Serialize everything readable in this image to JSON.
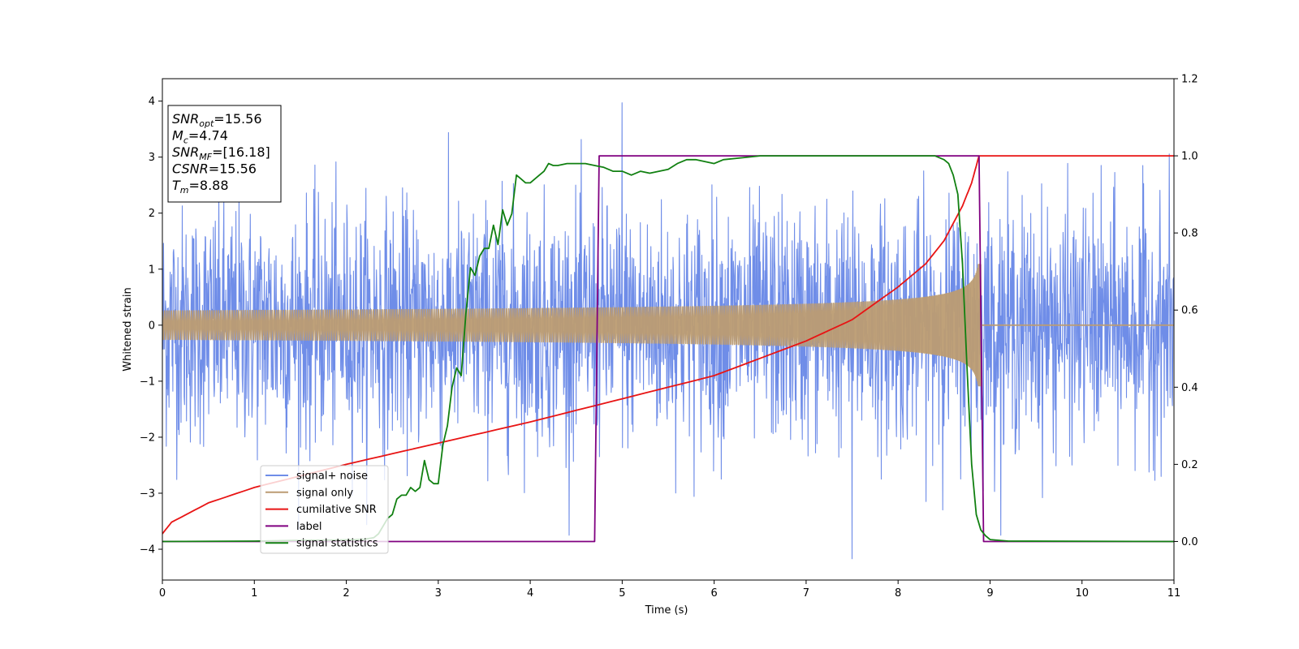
{
  "chart_data": {
    "type": "line",
    "title": "",
    "xlabel": "Time (s)",
    "ylabel": "Whitened strain",
    "xlim": [
      0,
      11
    ],
    "ylim": [
      -4.55,
      4.4
    ],
    "y2lim": [
      -0.1,
      1.2
    ],
    "x_ticks": [
      0,
      1,
      2,
      3,
      4,
      5,
      6,
      7,
      8,
      9,
      10,
      11
    ],
    "y_ticks": [
      -4,
      -3,
      -2,
      -1,
      0,
      1,
      2,
      3,
      4
    ],
    "y2_ticks": [
      0.0,
      0.2,
      0.4,
      0.6,
      0.8,
      1.0,
      1.2
    ],
    "y2_tick_labels": [
      "0.0",
      "0.2",
      "0.4",
      "0.6",
      "0.8",
      "1.0",
      "1.2"
    ],
    "grid": false,
    "legend_position": "lower-left",
    "series": [
      {
        "name": "signal+ noise",
        "axis": "left",
        "color": "#6f8de8",
        "kind": "noise",
        "sigma": 1.0,
        "peak_max": 3.97,
        "peak_min": -4.17,
        "samples": 2600
      },
      {
        "name": "signal only",
        "axis": "left",
        "color": "#bc9c72",
        "kind": "chirp",
        "amplitude_start": 0.08,
        "amplitude_at_8": 0.45,
        "amplitude_peak": 1.08,
        "merger_time": 8.88,
        "end_time": 8.9
      },
      {
        "name": "cumilative SNR",
        "axis": "right",
        "color": "#e81414",
        "x": [
          0,
          0.1,
          0.5,
          1,
          2,
          3,
          4,
          5,
          6,
          7,
          7.5,
          8,
          8.3,
          8.5,
          8.7,
          8.8,
          8.88,
          11
        ],
        "y": [
          0.02,
          0.05,
          0.1,
          0.14,
          0.2,
          0.255,
          0.31,
          0.37,
          0.43,
          0.52,
          0.575,
          0.66,
          0.72,
          0.78,
          0.87,
          0.93,
          1.0,
          1.0
        ]
      },
      {
        "name": "label",
        "axis": "right",
        "color": "#800080",
        "x": [
          0,
          4.7,
          4.75,
          8.88,
          8.93,
          11
        ],
        "y": [
          0,
          0,
          1,
          1,
          0,
          0
        ]
      },
      {
        "name": "signal statistics",
        "axis": "right",
        "color": "#118011",
        "x": [
          0,
          1,
          1.5,
          1.9,
          2.1,
          2.2,
          2.3,
          2.35,
          2.4,
          2.45,
          2.5,
          2.55,
          2.6,
          2.65,
          2.7,
          2.75,
          2.8,
          2.85,
          2.9,
          2.95,
          3.0,
          3.05,
          3.1,
          3.15,
          3.2,
          3.25,
          3.3,
          3.35,
          3.4,
          3.45,
          3.5,
          3.55,
          3.6,
          3.65,
          3.7,
          3.75,
          3.8,
          3.85,
          3.9,
          3.95,
          4.0,
          4.05,
          4.1,
          4.15,
          4.2,
          4.25,
          4.3,
          4.4,
          4.5,
          4.6,
          4.7,
          4.8,
          4.9,
          5.0,
          5.1,
          5.2,
          5.3,
          5.4,
          5.5,
          5.6,
          5.7,
          5.8,
          6.0,
          6.1,
          6.3,
          6.5,
          7.0,
          7.5,
          8.0,
          8.4,
          8.5,
          8.55,
          8.6,
          8.65,
          8.7,
          8.75,
          8.8,
          8.85,
          8.9,
          8.95,
          9.0,
          9.2,
          11
        ],
        "y": [
          0.0,
          0.001,
          0.003,
          0.004,
          0.005,
          0.006,
          0.01,
          0.02,
          0.04,
          0.06,
          0.07,
          0.11,
          0.12,
          0.12,
          0.14,
          0.13,
          0.14,
          0.21,
          0.16,
          0.15,
          0.15,
          0.25,
          0.3,
          0.4,
          0.45,
          0.43,
          0.59,
          0.71,
          0.69,
          0.74,
          0.76,
          0.76,
          0.82,
          0.77,
          0.86,
          0.82,
          0.85,
          0.95,
          0.94,
          0.93,
          0.93,
          0.94,
          0.95,
          0.96,
          0.98,
          0.975,
          0.975,
          0.98,
          0.98,
          0.98,
          0.975,
          0.97,
          0.96,
          0.96,
          0.95,
          0.96,
          0.955,
          0.96,
          0.965,
          0.98,
          0.99,
          0.99,
          0.98,
          0.99,
          0.995,
          1.0,
          1.0,
          1.0,
          1.0,
          1.0,
          0.99,
          0.98,
          0.95,
          0.9,
          0.72,
          0.45,
          0.2,
          0.07,
          0.03,
          0.015,
          0.005,
          0.001,
          0.0
        ]
      }
    ],
    "annotations": [
      {
        "prefix": "SNR",
        "sub": "opt",
        "suffix": "=15.56"
      },
      {
        "prefix": "M",
        "sub": "c",
        "suffix": "=4.74"
      },
      {
        "prefix": "SNR",
        "sub": "MF",
        "suffix": "=[16.18]"
      },
      {
        "prefix": "CSNR",
        "sub": "",
        "suffix": "=15.56"
      },
      {
        "prefix": "T",
        "sub": "m",
        "suffix": "=8.88"
      }
    ]
  }
}
